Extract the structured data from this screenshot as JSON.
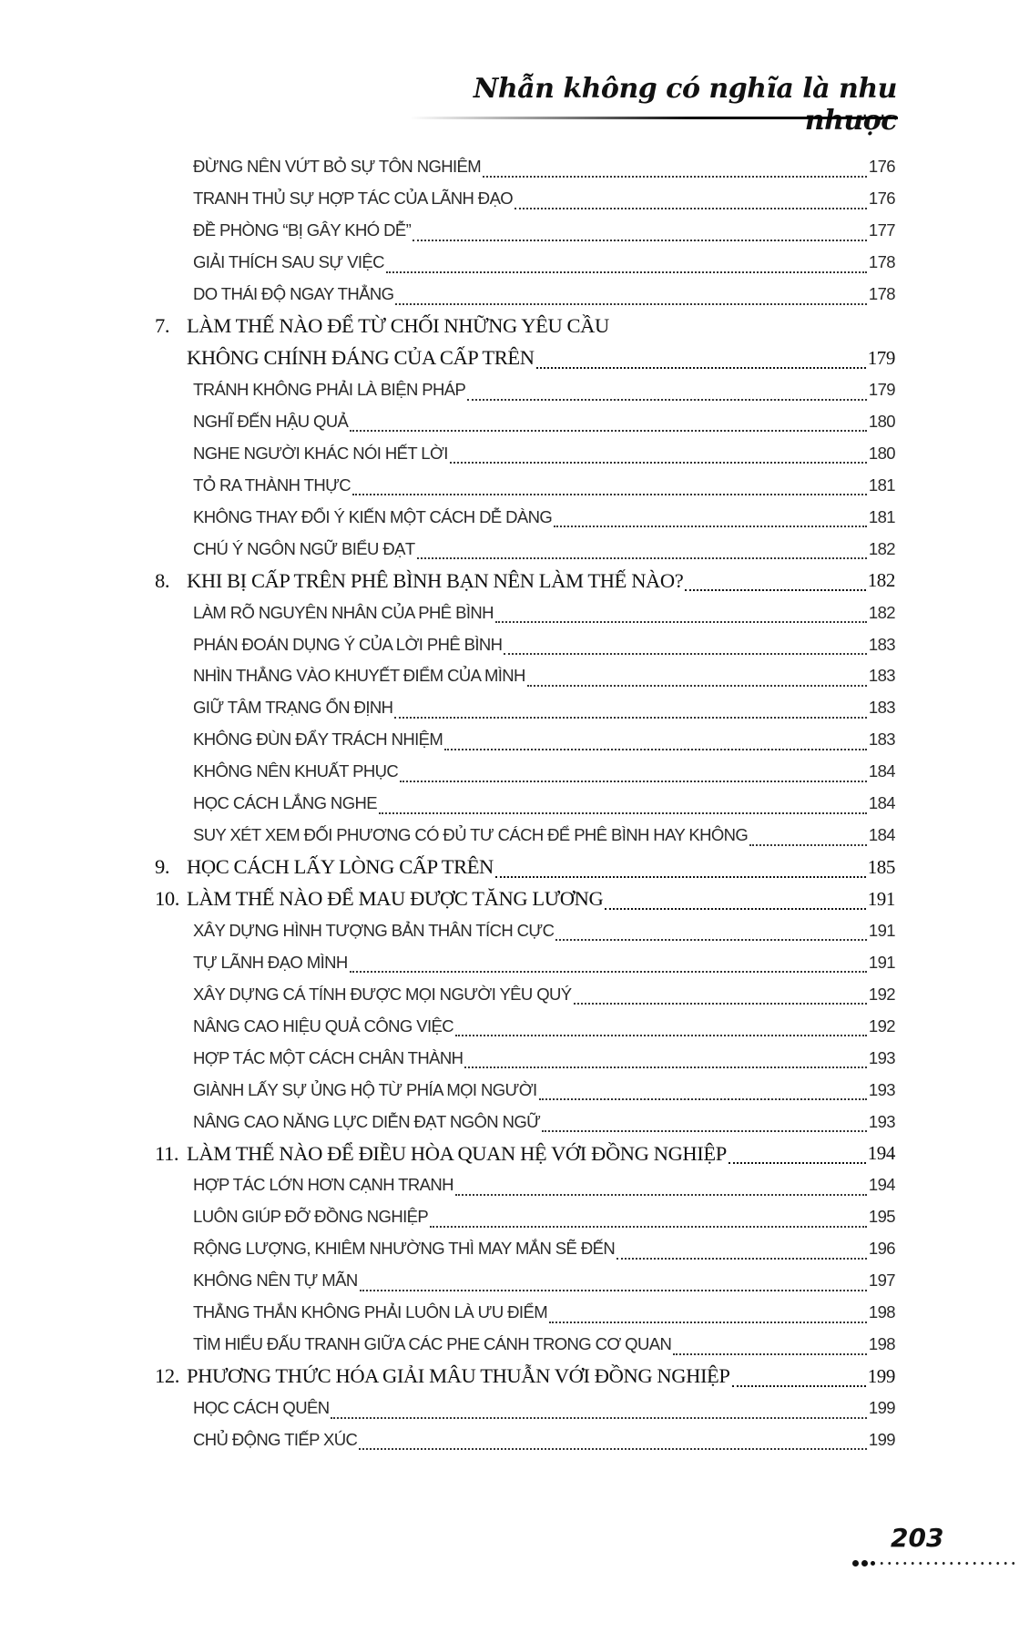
{
  "header": {
    "title": "Nhẫn không có nghĩa là nhu nhược"
  },
  "page_number": "203",
  "toc": [
    {
      "type": "sub",
      "title": "ĐỪNG NÊN VỨT BỎ SỰ TÔN NGHIÊM",
      "page": "176"
    },
    {
      "type": "sub",
      "title": "TRANH THỦ SỰ HỢP TÁC CỦA LÃNH ĐẠO",
      "page": "176"
    },
    {
      "type": "sub",
      "title": "ĐỀ PHÒNG “BỊ GÂY KHÓ DỄ”",
      "page": "177"
    },
    {
      "type": "sub",
      "title": "GIẢI THÍCH SAU SỰ VIỆC",
      "page": "178"
    },
    {
      "type": "sub",
      "title": "DO THÁI ĐỘ NGAY THẲNG",
      "page": "178"
    },
    {
      "type": "main",
      "num": "7.",
      "title": "LÀM THẾ NÀO ĐỂ TỪ CHỐI NHỮNG YÊU CẦU",
      "title_cont": "KHÔNG CHÍNH ĐÁNG CỦA CẤP TRÊN",
      "page": "179"
    },
    {
      "type": "sub",
      "title": "TRÁNH KHÔNG PHẢI LÀ BIỆN PHÁP",
      "page": "179"
    },
    {
      "type": "sub",
      "title": "NGHĨ ĐẾN HẬU QUẢ",
      "page": "180"
    },
    {
      "type": "sub",
      "title": "NGHE NGƯỜI KHÁC NÓI HẾT LỜI",
      "page": "180"
    },
    {
      "type": "sub",
      "title": "TỎ RA THÀNH THỰC",
      "page": "181"
    },
    {
      "type": "sub",
      "title": "KHÔNG THAY ĐỔI Ý KIẾN MỘT CÁCH DỄ DÀNG",
      "page": "181"
    },
    {
      "type": "sub",
      "title": "CHÚ Ý NGÔN NGỮ BIỂU ĐẠT",
      "page": "182"
    },
    {
      "type": "main",
      "num": "8.",
      "title": "KHI BỊ CẤP TRÊN PHÊ BÌNH BẠN NÊN LÀM THẾ NÀO?",
      "page": "182"
    },
    {
      "type": "sub",
      "title": "LÀM RÕ NGUYÊN NHÂN CỦA PHÊ BÌNH",
      "page": "182"
    },
    {
      "type": "sub",
      "title": "PHÁN ĐOÁN DỤNG Ý CỦA LỜI PHÊ BÌNH",
      "page": "183"
    },
    {
      "type": "sub",
      "title": "NHÌN THẲNG VÀO KHUYẾT ĐIỂM CỦA MÌNH",
      "page": "183"
    },
    {
      "type": "sub",
      "title": "GIỮ TÂM TRẠNG ỔN ĐỊNH",
      "page": "183"
    },
    {
      "type": "sub",
      "title": "KHÔNG ĐÙN ĐẨY TRÁCH NHIỆM",
      "page": "183"
    },
    {
      "type": "sub",
      "title": "KHÔNG NÊN KHUẤT PHỤC",
      "page": "184"
    },
    {
      "type": "sub",
      "title": "HỌC CÁCH LẮNG NGHE",
      "page": "184"
    },
    {
      "type": "sub",
      "title": "SUY XÉT XEM ĐỐI PHƯƠNG CÓ ĐỦ TƯ CÁCH ĐỂ PHÊ BÌNH HAY KHÔNG",
      "page": "184"
    },
    {
      "type": "main",
      "num": "9.",
      "title": "HỌC CÁCH LẤY LÒNG CẤP TRÊN",
      "page": "185"
    },
    {
      "type": "main",
      "num": "10.",
      "title": "LÀM THẾ NÀO ĐỂ MAU ĐƯỢC TĂNG LƯƠNG",
      "page": "191"
    },
    {
      "type": "sub",
      "title": "XÂY DỰNG HÌNH TƯỢNG BẢN THÂN TÍCH CỰC",
      "page": "191"
    },
    {
      "type": "sub",
      "title": "TỰ LÃNH ĐẠO MÌNH",
      "page": "191"
    },
    {
      "type": "sub",
      "title": "XÂY DỰNG CÁ TÍNH ĐƯỢC MỌI NGƯỜI YÊU QUÝ",
      "page": "192"
    },
    {
      "type": "sub",
      "title": "NÂNG CAO HIỆU QUẢ CÔNG VIỆC",
      "page": "192"
    },
    {
      "type": "sub",
      "title": "HỢP TÁC MỘT CÁCH CHÂN THÀNH",
      "page": "193"
    },
    {
      "type": "sub",
      "title": "GIÀNH LẤY SỰ ỦNG HỘ TỪ PHÍA MỌI NGƯỜI",
      "page": "193"
    },
    {
      "type": "sub",
      "title": "NÂNG CAO NĂNG LỰC DIỄN ĐẠT NGÔN NGỮ",
      "page": "193"
    },
    {
      "type": "main",
      "num": "11.",
      "title": "LÀM THẾ NÀO ĐỂ ĐIỀU HÒA QUAN HỆ VỚI ĐỒNG NGHIỆP",
      "page": "194"
    },
    {
      "type": "sub",
      "title": "HỢP TÁC LỚN HƠN CẠNH TRANH",
      "page": "194"
    },
    {
      "type": "sub",
      "title": "LUÔN GIÚP ĐỠ ĐỒNG NGHIỆP",
      "page": "195"
    },
    {
      "type": "sub",
      "title": "RỘNG LƯỢNG, KHIÊM NHƯỜNG THÌ MAY MẮN SẼ ĐẾN",
      "page": "196"
    },
    {
      "type": "sub",
      "title": "KHÔNG NÊN TỰ MÃN",
      "page": "197"
    },
    {
      "type": "sub",
      "title": "THẲNG THẮN KHÔNG PHẢI LUÔN LÀ ƯU ĐIỂM",
      "page": "198"
    },
    {
      "type": "sub",
      "title": "TÌM HIỂU ĐẤU TRANH GIỮA CÁC PHE CÁNH TRONG CƠ QUAN",
      "page": "198"
    },
    {
      "type": "main",
      "num": "12.",
      "title": "PHƯƠNG THỨC HÓA GIẢI MÂU THUẪN VỚI ĐỒNG NGHIỆP",
      "page": "199"
    },
    {
      "type": "sub",
      "title": "HỌC CÁCH QUÊN",
      "page": "199"
    },
    {
      "type": "sub",
      "title": "CHỦ ĐỘNG TIẾP XÚC",
      "page": "199"
    }
  ]
}
